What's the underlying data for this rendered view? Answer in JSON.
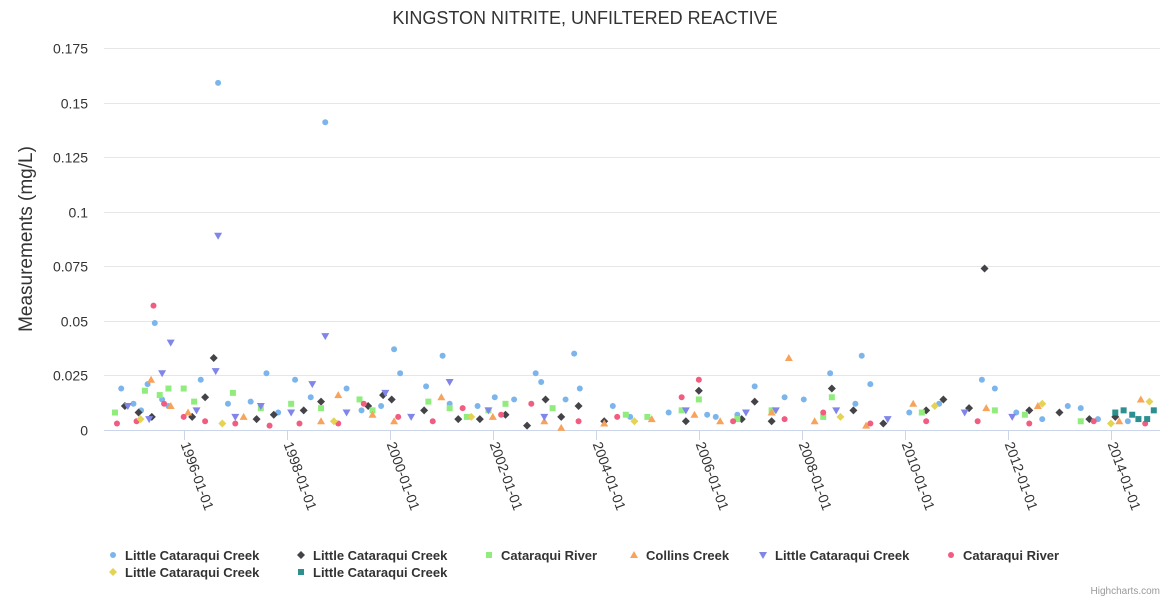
{
  "chart_data": {
    "type": "scatter",
    "title": "KINGSTON NITRITE, UNFILTERED REACTIVE",
    "xlabel": "",
    "ylabel": "Measurements (mg/L)",
    "ylim": [
      0,
      0.175
    ],
    "xlim": [
      "1994-06-15",
      "2014-12-15"
    ],
    "y_ticks": [
      0,
      0.025,
      0.05,
      0.075,
      0.1,
      0.125,
      0.15,
      0.175
    ],
    "y_tick_labels": [
      "0",
      "0.025",
      "0.05",
      "0.075",
      "0.1",
      "0.125",
      "0.15",
      "0.175"
    ],
    "x_ticks": [
      "1996-01-01",
      "1998-01-01",
      "2000-01-01",
      "2002-01-01",
      "2004-01-01",
      "2006-01-01",
      "2008-01-01",
      "2010-01-01",
      "2012-01-01",
      "2014-01-01"
    ],
    "grid": "horizontal",
    "legend_position": "bottom",
    "credit": "Highcharts.com",
    "series": [
      {
        "name": "Little Cataraqui Creek",
        "color": "#7cb5ec",
        "symbol": "circle",
        "points": [
          [
            "1994-10-15",
            0.019
          ],
          [
            "1995-01-10",
            0.012
          ],
          [
            "1995-03-05",
            0.009
          ],
          [
            "1995-04-20",
            0.021
          ],
          [
            "1995-06-10",
            0.049
          ],
          [
            "1995-08-01",
            0.014
          ],
          [
            "1995-09-15",
            0.011
          ],
          [
            "1996-05-01",
            0.023
          ],
          [
            "1996-09-01",
            0.159
          ],
          [
            "1996-11-10",
            0.012
          ],
          [
            "1997-04-20",
            0.013
          ],
          [
            "1997-08-10",
            0.026
          ],
          [
            "1997-11-01",
            0.008
          ],
          [
            "1998-03-01",
            0.023
          ],
          [
            "1998-06-20",
            0.015
          ],
          [
            "1998-10-01",
            0.141
          ],
          [
            "1999-03-01",
            0.019
          ],
          [
            "1999-06-15",
            0.009
          ],
          [
            "1999-11-01",
            0.011
          ],
          [
            "2000-02-01",
            0.037
          ],
          [
            "2000-03-15",
            0.026
          ],
          [
            "2000-09-15",
            0.02
          ],
          [
            "2001-01-10",
            0.034
          ],
          [
            "2001-03-01",
            0.012
          ],
          [
            "2001-09-15",
            0.011
          ],
          [
            "2002-01-15",
            0.015
          ],
          [
            "2002-06-01",
            0.014
          ],
          [
            "2002-11-01",
            0.026
          ],
          [
            "2002-12-10",
            0.022
          ],
          [
            "2003-06-01",
            0.014
          ],
          [
            "2003-08-01",
            0.035
          ],
          [
            "2003-09-10",
            0.019
          ],
          [
            "2004-05-01",
            0.011
          ],
          [
            "2004-09-01",
            0.006
          ],
          [
            "2005-06-01",
            0.008
          ],
          [
            "2006-03-01",
            0.007
          ],
          [
            "2006-05-01",
            0.006
          ],
          [
            "2006-10-01",
            0.007
          ],
          [
            "2007-02-01",
            0.02
          ],
          [
            "2007-09-01",
            0.015
          ],
          [
            "2008-01-15",
            0.014
          ],
          [
            "2008-07-20",
            0.026
          ],
          [
            "2009-01-15",
            0.012
          ],
          [
            "2009-03-01",
            0.034
          ],
          [
            "2009-05-01",
            0.021
          ],
          [
            "2010-02-01",
            0.008
          ],
          [
            "2010-09-01",
            0.012
          ],
          [
            "2011-07-01",
            0.023
          ],
          [
            "2011-10-01",
            0.019
          ],
          [
            "2012-03-01",
            0.008
          ],
          [
            "2012-09-01",
            0.005
          ],
          [
            "2013-03-01",
            0.011
          ],
          [
            "2013-06-01",
            0.01
          ],
          [
            "2013-10-01",
            0.005
          ],
          [
            "2014-05-01",
            0.004
          ]
        ]
      },
      {
        "name": "Little Cataraqui Creek",
        "color": "#434348",
        "symbol": "diamond",
        "points": [
          [
            "1994-11-10",
            0.011
          ],
          [
            "1995-02-15",
            0.008
          ],
          [
            "1995-05-20",
            0.006
          ],
          [
            "1996-03-01",
            0.006
          ],
          [
            "1996-06-01",
            0.015
          ],
          [
            "1996-08-01",
            0.033
          ],
          [
            "1997-06-01",
            0.005
          ],
          [
            "1997-10-01",
            0.007
          ],
          [
            "1998-05-01",
            0.009
          ],
          [
            "1998-09-01",
            0.013
          ],
          [
            "1999-08-01",
            0.011
          ],
          [
            "1999-11-15",
            0.016
          ],
          [
            "2000-01-15",
            0.014
          ],
          [
            "2000-09-01",
            0.009
          ],
          [
            "2001-05-01",
            0.005
          ],
          [
            "2001-10-01",
            0.005
          ],
          [
            "2002-04-01",
            0.007
          ],
          [
            "2002-09-01",
            0.002
          ],
          [
            "2003-01-10",
            0.014
          ],
          [
            "2003-05-01",
            0.006
          ],
          [
            "2003-09-01",
            0.011
          ],
          [
            "2004-03-01",
            0.004
          ],
          [
            "2005-10-01",
            0.004
          ],
          [
            "2006-01-01",
            0.018
          ],
          [
            "2006-11-01",
            0.005
          ],
          [
            "2007-02-01",
            0.013
          ],
          [
            "2007-06-01",
            0.004
          ],
          [
            "2008-08-01",
            0.019
          ],
          [
            "2009-01-01",
            0.009
          ],
          [
            "2009-08-01",
            0.003
          ],
          [
            "2010-06-01",
            0.009
          ],
          [
            "2010-10-01",
            0.014
          ],
          [
            "2011-04-01",
            0.01
          ],
          [
            "2011-07-20",
            0.074
          ],
          [
            "2012-06-01",
            0.009
          ],
          [
            "2013-01-01",
            0.008
          ],
          [
            "2013-08-01",
            0.005
          ],
          [
            "2014-02-01",
            0.006
          ]
        ]
      },
      {
        "name": "Cataraqui River",
        "color": "#90ed7d",
        "symbol": "square",
        "points": [
          [
            "1994-09-01",
            0.008
          ],
          [
            "1995-04-01",
            0.018
          ],
          [
            "1995-07-15",
            0.016
          ],
          [
            "1995-09-15",
            0.019
          ],
          [
            "1996-01-01",
            0.019
          ],
          [
            "1996-03-15",
            0.013
          ],
          [
            "1996-12-15",
            0.017
          ],
          [
            "1997-07-01",
            0.01
          ],
          [
            "1998-02-01",
            0.012
          ],
          [
            "1998-09-01",
            0.01
          ],
          [
            "1999-06-01",
            0.014
          ],
          [
            "1999-09-01",
            0.009
          ],
          [
            "2000-10-01",
            0.013
          ],
          [
            "2001-03-01",
            0.01
          ],
          [
            "2001-07-01",
            0.006
          ],
          [
            "2001-12-01",
            0.009
          ],
          [
            "2002-04-01",
            0.012
          ],
          [
            "2003-03-01",
            0.01
          ],
          [
            "2004-08-01",
            0.007
          ],
          [
            "2005-01-01",
            0.006
          ],
          [
            "2005-09-01",
            0.009
          ],
          [
            "2006-01-01",
            0.014
          ],
          [
            "2006-10-01",
            0.005
          ],
          [
            "2007-06-01",
            0.009
          ],
          [
            "2008-06-01",
            0.006
          ],
          [
            "2008-08-01",
            0.015
          ],
          [
            "2010-05-01",
            0.008
          ],
          [
            "2011-10-01",
            0.009
          ],
          [
            "2012-05-01",
            0.007
          ],
          [
            "2013-06-01",
            0.004
          ]
        ]
      },
      {
        "name": "Collins Creek",
        "color": "#f7a35c",
        "symbol": "triangle",
        "points": [
          [
            "1995-05-15",
            0.023
          ],
          [
            "1995-10-01",
            0.011
          ],
          [
            "1996-02-01",
            0.008
          ],
          [
            "1997-03-01",
            0.006
          ],
          [
            "1998-09-01",
            0.004
          ],
          [
            "1999-01-01",
            0.016
          ],
          [
            "1999-09-01",
            0.007
          ],
          [
            "2000-02-01",
            0.004
          ],
          [
            "2001-01-01",
            0.015
          ],
          [
            "2002-01-01",
            0.006
          ],
          [
            "2003-01-01",
            0.004
          ],
          [
            "2003-05-01",
            0.001
          ],
          [
            "2004-03-01",
            0.003
          ],
          [
            "2005-02-01",
            0.005
          ],
          [
            "2005-12-01",
            0.007
          ],
          [
            "2006-06-01",
            0.004
          ],
          [
            "2007-06-01",
            0.008
          ],
          [
            "2007-10-01",
            0.033
          ],
          [
            "2008-04-01",
            0.004
          ],
          [
            "2009-04-01",
            0.002
          ],
          [
            "2010-03-01",
            0.012
          ],
          [
            "2011-08-01",
            0.01
          ],
          [
            "2012-08-01",
            0.011
          ],
          [
            "2014-03-01",
            0.004
          ],
          [
            "2014-08-01",
            0.014
          ]
        ]
      },
      {
        "name": "Little Cataraqui Creek",
        "color": "#8085e9",
        "symbol": "triangle-down",
        "points": [
          [
            "1994-12-01",
            0.011
          ],
          [
            "1995-05-01",
            0.005
          ],
          [
            "1995-08-01",
            0.026
          ],
          [
            "1995-10-01",
            0.04
          ],
          [
            "1996-04-01",
            0.009
          ],
          [
            "1996-08-15",
            0.027
          ],
          [
            "1996-09-01",
            0.089
          ],
          [
            "1997-01-01",
            0.006
          ],
          [
            "1997-07-01",
            0.011
          ],
          [
            "1998-02-01",
            0.008
          ],
          [
            "1998-07-01",
            0.021
          ],
          [
            "1998-10-01",
            0.043
          ],
          [
            "1999-03-01",
            0.008
          ],
          [
            "1999-12-01",
            0.017
          ],
          [
            "2000-06-01",
            0.006
          ],
          [
            "2001-03-01",
            0.022
          ],
          [
            "2001-12-01",
            0.009
          ],
          [
            "2003-01-01",
            0.006
          ],
          [
            "2005-10-01",
            0.009
          ],
          [
            "2006-12-01",
            0.008
          ],
          [
            "2007-07-01",
            0.009
          ],
          [
            "2008-09-01",
            0.009
          ],
          [
            "2009-09-01",
            0.005
          ],
          [
            "2011-03-01",
            0.008
          ],
          [
            "2012-02-01",
            0.006
          ]
        ]
      },
      {
        "name": "Cataraqui River",
        "color": "#f15c80",
        "symbol": "circle",
        "points": [
          [
            "1994-09-15",
            0.003
          ],
          [
            "1995-02-01",
            0.004
          ],
          [
            "1995-06-01",
            0.057
          ],
          [
            "1995-08-15",
            0.012
          ],
          [
            "1996-01-01",
            0.006
          ],
          [
            "1996-06-01",
            0.004
          ],
          [
            "1997-01-01",
            0.003
          ],
          [
            "1997-09-01",
            0.002
          ],
          [
            "1998-04-01",
            0.003
          ],
          [
            "1999-01-01",
            0.003
          ],
          [
            "1999-07-01",
            0.012
          ],
          [
            "2000-03-01",
            0.006
          ],
          [
            "2000-11-01",
            0.004
          ],
          [
            "2001-06-01",
            0.01
          ],
          [
            "2002-03-01",
            0.007
          ],
          [
            "2002-10-01",
            0.012
          ],
          [
            "2003-09-01",
            0.004
          ],
          [
            "2004-06-01",
            0.006
          ],
          [
            "2005-09-01",
            0.015
          ],
          [
            "2006-01-01",
            0.023
          ],
          [
            "2006-09-01",
            0.004
          ],
          [
            "2007-09-01",
            0.005
          ],
          [
            "2008-06-01",
            0.008
          ],
          [
            "2009-05-01",
            0.003
          ],
          [
            "2010-06-01",
            0.004
          ],
          [
            "2011-06-01",
            0.004
          ],
          [
            "2012-06-01",
            0.003
          ],
          [
            "2013-09-01",
            0.004
          ],
          [
            "2014-09-01",
            0.003
          ]
        ]
      },
      {
        "name": "Little Cataraqui Creek",
        "color": "#e4d354",
        "symbol": "diamond",
        "points": [
          [
            "1995-03-01",
            0.005
          ],
          [
            "1996-10-01",
            0.003
          ],
          [
            "1998-12-01",
            0.004
          ],
          [
            "2001-08-01",
            0.006
          ],
          [
            "2004-10-01",
            0.004
          ],
          [
            "2008-10-01",
            0.006
          ],
          [
            "2010-08-01",
            0.011
          ],
          [
            "2012-09-01",
            0.012
          ],
          [
            "2014-01-01",
            0.003
          ],
          [
            "2014-10-01",
            0.013
          ]
        ]
      },
      {
        "name": "Little Cataraqui Creek",
        "color": "#2b908f",
        "symbol": "square",
        "points": [
          [
            "2014-02-01",
            0.008
          ],
          [
            "2014-04-01",
            0.009
          ],
          [
            "2014-06-01",
            0.007
          ],
          [
            "2014-07-15",
            0.005
          ],
          [
            "2014-09-15",
            0.005
          ],
          [
            "2014-11-01",
            0.009
          ]
        ]
      }
    ]
  }
}
